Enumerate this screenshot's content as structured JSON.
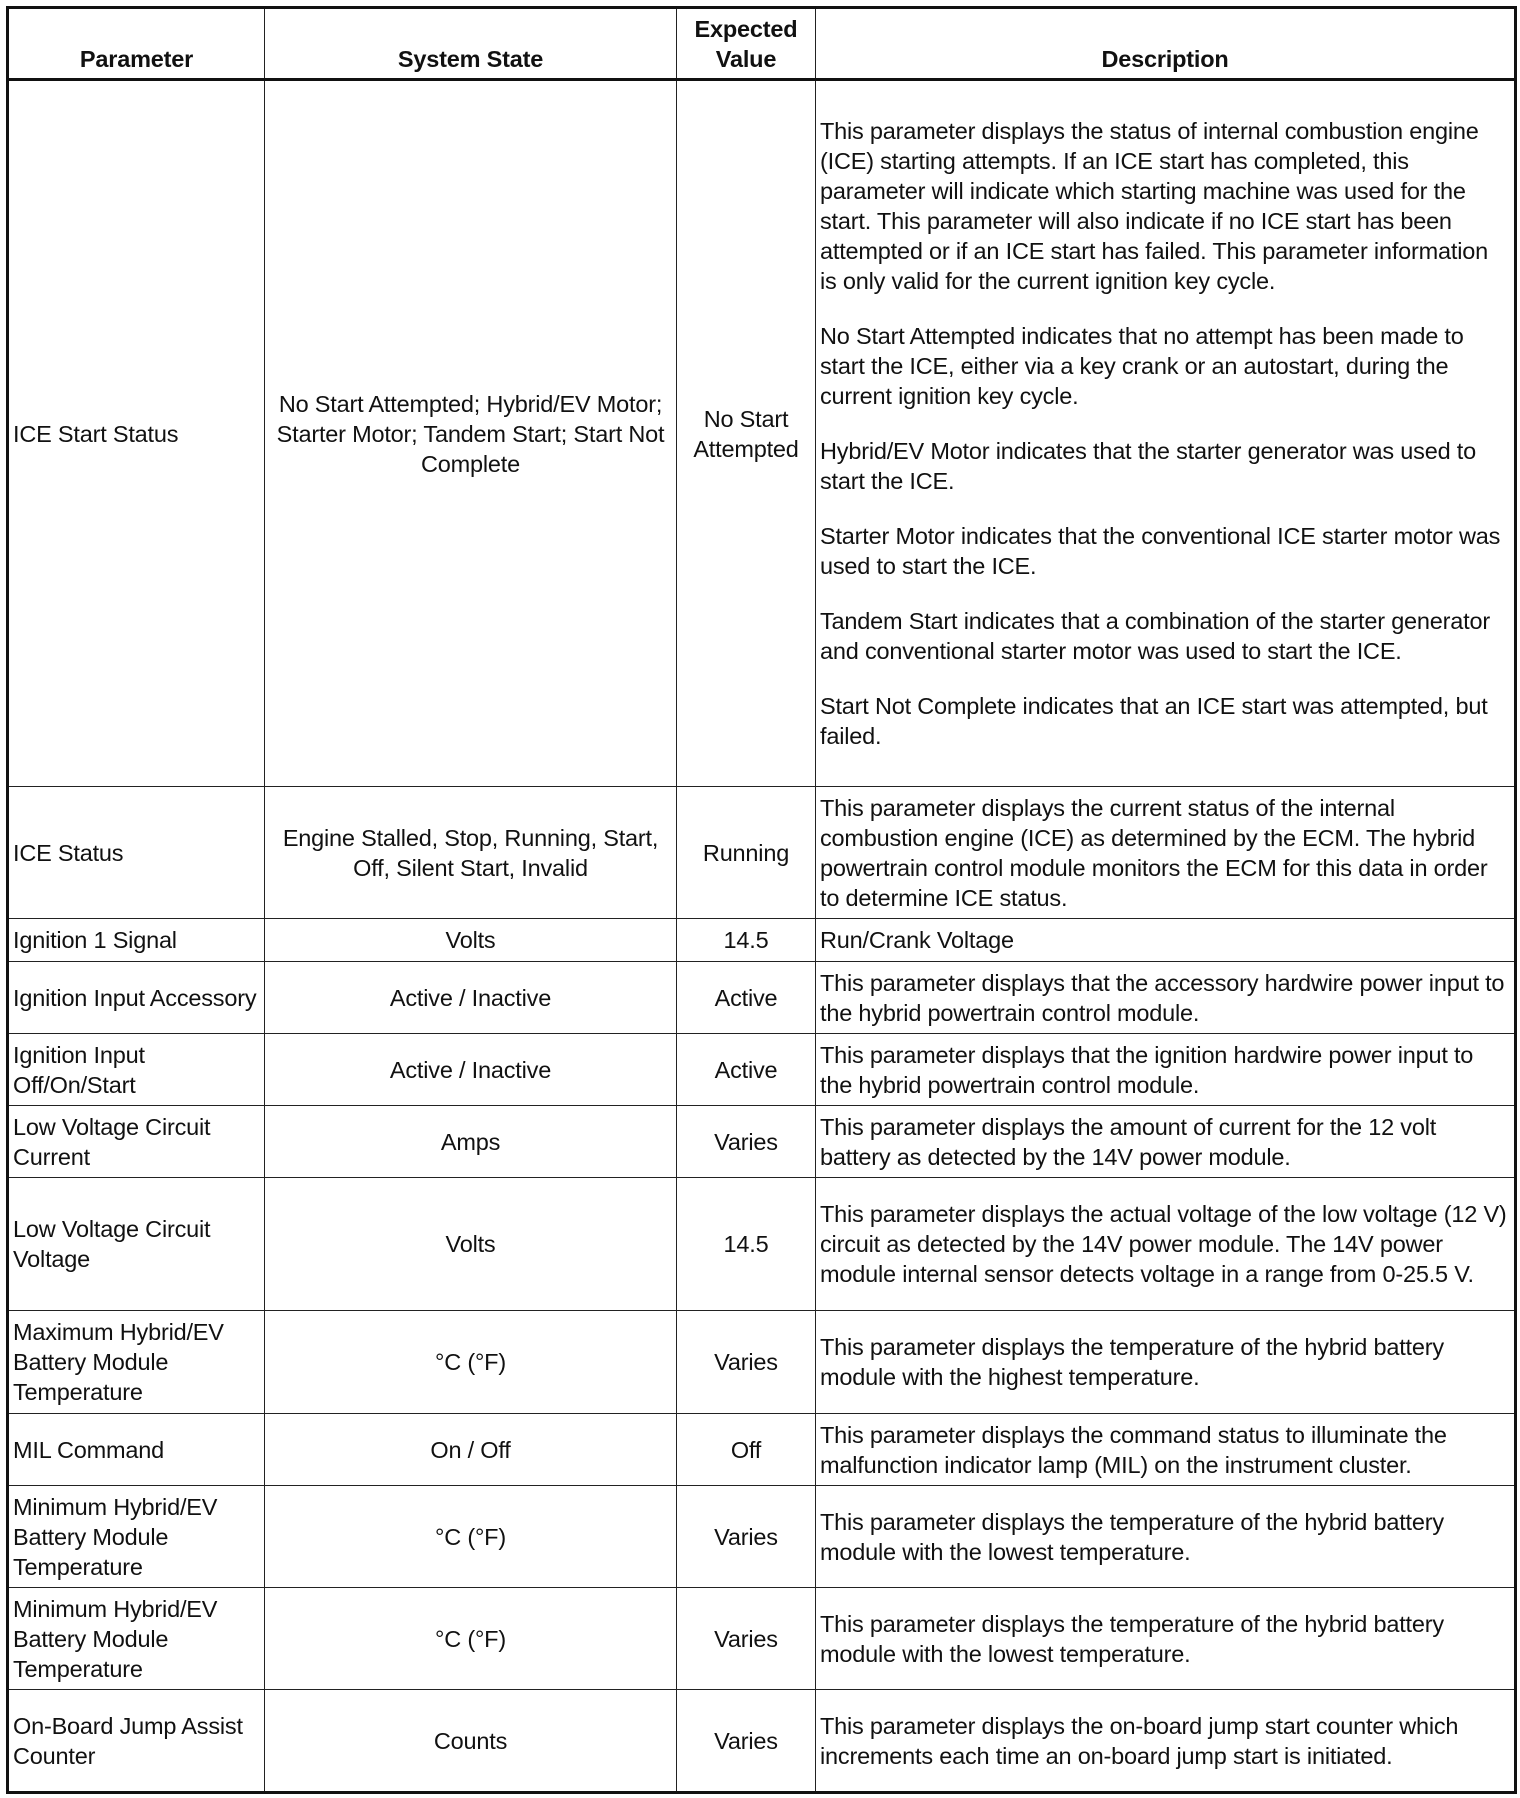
{
  "headers": [
    "Parameter",
    "System State",
    "Expected Value",
    "Description"
  ],
  "rows": [
    {
      "parameter": "ICE Start Status",
      "state": "No Start Attempted; Hybrid/EV Motor; Starter Motor; Tandem Start; Start Not Complete",
      "expected": "No Start Attempted",
      "description": [
        "This parameter displays the status of internal combustion engine (ICE) starting attempts. If an ICE start has completed, this parameter will indicate which starting machine was used for the start. This parameter will also indicate if no ICE start has been attempted or if an ICE start has failed. This parameter information is only valid for the current ignition key cycle.",
        "No Start Attempted indicates that no attempt has been made to start the ICE, either via a key crank or an autostart, during the current ignition key cycle.",
        "Hybrid/EV Motor indicates that the starter generator was used to start the ICE.",
        "Starter Motor indicates that the conventional ICE starter motor was used to start the ICE.",
        "Tandem Start indicates that a combination of the starter generator and conventional starter motor was used to start the ICE.",
        "Start Not Complete indicates that an ICE start was attempted, but failed."
      ]
    },
    {
      "parameter": "ICE Status",
      "state": "Engine Stalled, Stop, Running, Start, Off, Silent Start, Invalid",
      "expected": "Running",
      "description": [
        "This parameter displays the current status of the internal combustion engine (ICE) as determined by the ECM. The hybrid powertrain control module monitors the ECM for this data in order to determine ICE status."
      ]
    },
    {
      "parameter": "Ignition 1 Signal",
      "state": "Volts",
      "expected": "14.5",
      "description": [
        "Run/Crank Voltage"
      ]
    },
    {
      "parameter": "Ignition Input Accessory",
      "state": "Active / Inactive",
      "expected": "Active",
      "description": [
        "This parameter displays that the accessory hardwire power input to the hybrid powertrain control module."
      ]
    },
    {
      "parameter": "Ignition Input Off/On/Start",
      "state": "Active / Inactive",
      "expected": "Active",
      "description": [
        "This parameter displays that the ignition hardwire power input to the hybrid powertrain control module."
      ]
    },
    {
      "parameter": "Low Voltage Circuit Current",
      "state": "Amps",
      "expected": "Varies",
      "description": [
        "This parameter displays the amount of current for the 12 volt battery as detected by the 14V power module."
      ]
    },
    {
      "parameter": "Low Voltage Circuit Voltage",
      "state": "Volts",
      "expected": "14.5",
      "description": [
        "This parameter displays the actual voltage of the low voltage (12 V) circuit as detected by the 14V power module. The 14V power module internal sensor detects voltage in a range from 0-25.5 V."
      ]
    },
    {
      "parameter": "Maximum Hybrid/EV Battery Module Temperature",
      "state": "°C (°F)",
      "expected": "Varies",
      "description": [
        "This parameter displays the temperature of the hybrid battery module with the highest temperature."
      ]
    },
    {
      "parameter": "MIL Command",
      "state": "On / Off",
      "expected": "Off",
      "description": [
        "This parameter displays the command status to illuminate the malfunction indicator lamp (MIL) on the instrument cluster."
      ]
    },
    {
      "parameter": "Minimum Hybrid/EV Battery Module Temperature",
      "state": "°C (°F)",
      "expected": "Varies",
      "description": [
        "This parameter displays the temperature of the hybrid battery module with the lowest temperature."
      ]
    },
    {
      "parameter": "Minimum Hybrid/EV Battery Module Temperature",
      "state": "°C (°F)",
      "expected": "Varies",
      "description": [
        "This parameter displays the temperature of the hybrid battery module with the lowest temperature."
      ]
    },
    {
      "parameter": "On-Board Jump Assist Counter",
      "state": "Counts",
      "expected": "Varies",
      "description": [
        "This parameter displays the on-board jump start counter which increments each time an on-board jump start is initiated."
      ]
    }
  ]
}
